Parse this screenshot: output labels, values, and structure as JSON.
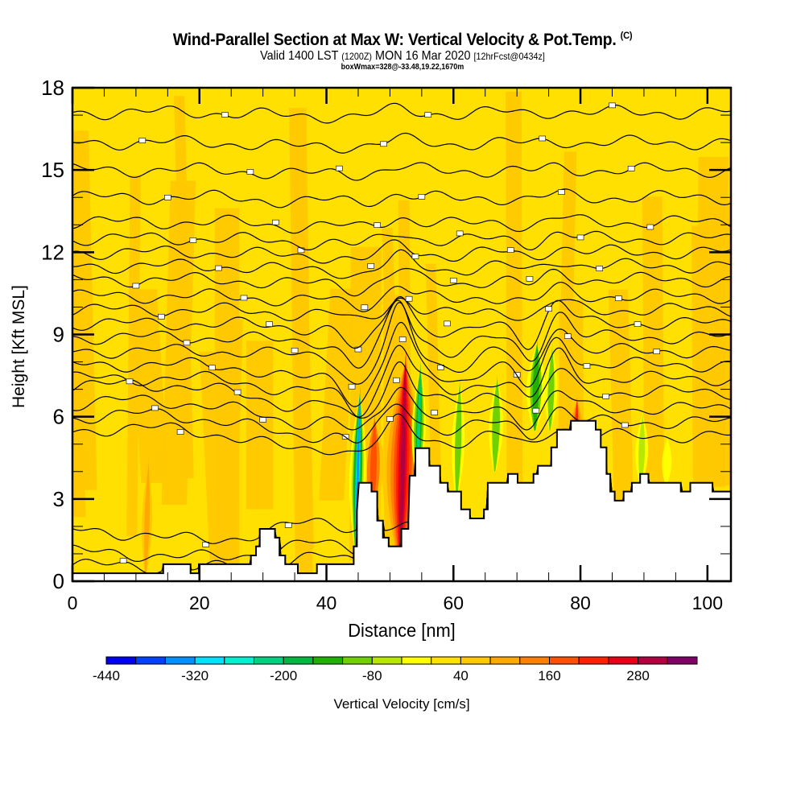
{
  "header": {
    "title": "Wind-Parallel Section at Max W: Vertical Velocity & Pot.Temp.",
    "copyright_mark": "(C)",
    "valid_prefix": "Valid 1400 LST",
    "valid_utc": "(1200Z)",
    "valid_date": "MON 16 Mar 2020",
    "forecast_info": "[12hrFcst@0434z]",
    "boxwmax": "boxWmax=328@-33.48,19.22,1670m"
  },
  "chart_data": {
    "type": "heatmap",
    "title": "Wind-Parallel Section at Max W: Vertical Velocity & Pot.Temp.",
    "xlabel": "Distance [nm]",
    "ylabel": "Height [Kft MSL]",
    "xlim": [
      0,
      103.7
    ],
    "ylim": [
      0,
      18
    ],
    "xticks": [
      0,
      20,
      40,
      60,
      80,
      100
    ],
    "yticks": [
      0,
      3,
      6,
      9,
      12,
      15,
      18
    ],
    "colorbar": {
      "label": "Vertical Velocity [cm/s]",
      "bounds": [
        -440,
        -400,
        -360,
        -320,
        -280,
        -240,
        -200,
        -160,
        -120,
        -80,
        -40,
        0,
        40,
        80,
        120,
        160,
        200,
        240,
        280,
        320,
        360
      ],
      "tick_labels": [
        "-440",
        "-320",
        "-200",
        "-80",
        "40",
        "160",
        "280"
      ],
      "tick_values": [
        -440,
        -320,
        -200,
        -80,
        40,
        160,
        280
      ],
      "colors": [
        "#0000f0",
        "#0040ff",
        "#0090ff",
        "#00e0ff",
        "#00f0d0",
        "#00d080",
        "#00b840",
        "#20b000",
        "#70d000",
        "#b8e800",
        "#ffff00",
        "#ffe000",
        "#ffc800",
        "#ffa800",
        "#ff8000",
        "#ff5000",
        "#ff2000",
        "#e80018",
        "#b00040",
        "#800068"
      ]
    },
    "max_w_cm_s": 328,
    "terrain_kft": [
      [
        0,
        0.29
      ],
      [
        14.3,
        0.29
      ],
      [
        14.3,
        0.62
      ],
      [
        18.6,
        0.62
      ],
      [
        18.6,
        0.29
      ],
      [
        19.9,
        0.29
      ],
      [
        19.9,
        0.62
      ],
      [
        28.1,
        0.62
      ],
      [
        28.1,
        0.94
      ],
      [
        28.9,
        0.94
      ],
      [
        28.9,
        1.27
      ],
      [
        29.5,
        1.27
      ],
      [
        29.5,
        1.91
      ],
      [
        31.9,
        1.91
      ],
      [
        31.9,
        1.59
      ],
      [
        32.6,
        1.59
      ],
      [
        32.6,
        0.94
      ],
      [
        33.5,
        0.94
      ],
      [
        33.5,
        0.62
      ],
      [
        35.5,
        0.62
      ],
      [
        35.5,
        0.29
      ],
      [
        38.5,
        0.29
      ],
      [
        38.5,
        0.62
      ],
      [
        44.3,
        0.62
      ],
      [
        44.3,
        1.27
      ],
      [
        44.8,
        1.27
      ],
      [
        44.8,
        2.56
      ],
      [
        45.1,
        3.59
      ],
      [
        47.1,
        3.59
      ],
      [
        47.1,
        3.27
      ],
      [
        48.0,
        3.27
      ],
      [
        48.0,
        2.21
      ],
      [
        48.9,
        2.21
      ],
      [
        48.9,
        1.59
      ],
      [
        49.8,
        1.59
      ],
      [
        49.8,
        1.27
      ],
      [
        51.8,
        1.27
      ],
      [
        51.8,
        1.91
      ],
      [
        52.9,
        1.91
      ],
      [
        52.9,
        2.24
      ],
      [
        53.1,
        3.85
      ],
      [
        54.0,
        3.85
      ],
      [
        54.0,
        4.85
      ],
      [
        56.2,
        4.85
      ],
      [
        56.2,
        4.21
      ],
      [
        57.9,
        4.21
      ],
      [
        57.9,
        3.59
      ],
      [
        59.1,
        3.59
      ],
      [
        59.1,
        3.27
      ],
      [
        61.2,
        3.27
      ],
      [
        61.2,
        2.62
      ],
      [
        62.6,
        2.62
      ],
      [
        62.6,
        2.29
      ],
      [
        64.8,
        2.29
      ],
      [
        64.8,
        2.62
      ],
      [
        65.4,
        2.62
      ],
      [
        65.4,
        3.59
      ],
      [
        68.6,
        3.59
      ],
      [
        68.6,
        3.91
      ],
      [
        70.1,
        3.91
      ],
      [
        70.1,
        3.59
      ],
      [
        72.6,
        3.59
      ],
      [
        72.6,
        3.91
      ],
      [
        73.3,
        3.91
      ],
      [
        73.3,
        4.21
      ],
      [
        75.4,
        4.21
      ],
      [
        75.4,
        4.88
      ],
      [
        76.3,
        4.88
      ],
      [
        76.3,
        5.53
      ],
      [
        78.5,
        5.53
      ],
      [
        78.5,
        5.85
      ],
      [
        82.4,
        5.85
      ],
      [
        82.4,
        5.53
      ],
      [
        83.2,
        5.53
      ],
      [
        83.2,
        4.88
      ],
      [
        84.1,
        4.88
      ],
      [
        84.1,
        3.91
      ],
      [
        84.7,
        3.91
      ],
      [
        84.7,
        3.27
      ],
      [
        85.4,
        3.27
      ],
      [
        85.4,
        2.94
      ],
      [
        86.8,
        2.94
      ],
      [
        86.8,
        3.27
      ],
      [
        88.1,
        3.27
      ],
      [
        88.1,
        3.59
      ],
      [
        89.4,
        3.59
      ],
      [
        89.4,
        3.91
      ],
      [
        90.7,
        3.91
      ],
      [
        90.7,
        3.59
      ],
      [
        95.8,
        3.59
      ],
      [
        95.8,
        3.27
      ],
      [
        97.3,
        3.27
      ],
      [
        97.3,
        3.59
      ],
      [
        100.8,
        3.59
      ],
      [
        100.8,
        3.27
      ],
      [
        103.7,
        3.27
      ]
    ],
    "velocity_features": [
      {
        "name": "strong-updraft",
        "x_nm": 51.9,
        "height_range_kft": [
          1.3,
          8.7
        ],
        "peak_cm_s": 328
      },
      {
        "name": "downdraft-west-slope",
        "x_nm": 45.2,
        "height_range_kft": [
          2.5,
          7.5
        ],
        "peak_cm_s": -360
      },
      {
        "name": "downdraft-east-of-updraft",
        "x_nm": 54.3,
        "height_range_kft": [
          4.0,
          8.0
        ],
        "peak_cm_s": -240
      },
      {
        "name": "downdraft-near-72nm",
        "x_nm": 73.3,
        "height_range_kft": [
          5.5,
          9.0
        ],
        "peak_cm_s": -160
      },
      {
        "name": "updraft-near-79nm",
        "x_nm": 79.0,
        "height_range_kft": [
          4.8,
          7.0
        ],
        "peak_cm_s": 200
      }
    ],
    "isentropes_label": "Potential temperature contours (unlabeled values too small to read)"
  }
}
